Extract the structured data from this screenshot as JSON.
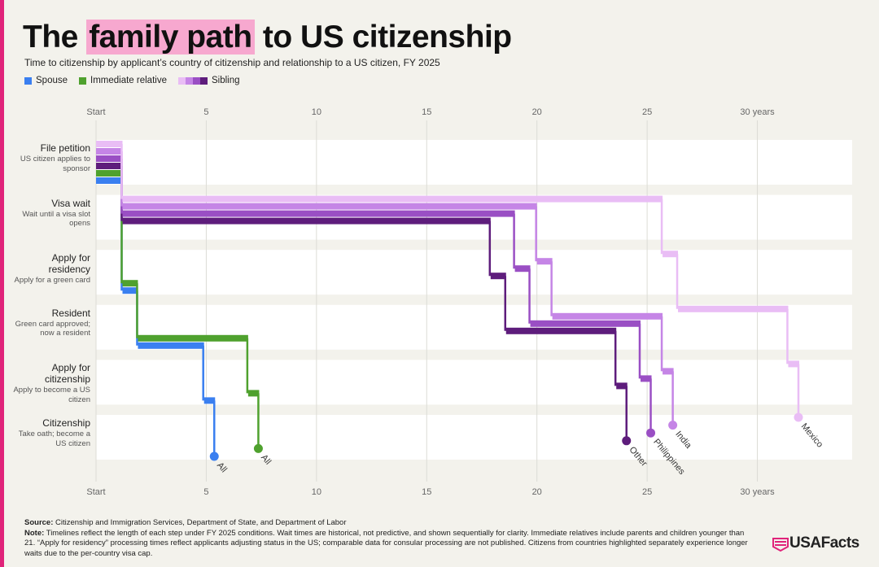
{
  "chart_data": {
    "type": "step-timeline",
    "title": {
      "before": "The",
      "highlight": "family path",
      "after": "to US citizenship"
    },
    "subtitle": "Time to citizenship by applicant’s country of citizenship and relationship to a US citizen, FY 2025",
    "legend": [
      {
        "name": "Spouse",
        "colors": [
          "#3a7ff0"
        ]
      },
      {
        "name": "Immediate relative",
        "colors": [
          "#4fa12e"
        ]
      },
      {
        "name": "Sibling",
        "colors": [
          "#e9bdf5",
          "#c585e6",
          "#9a4fc4",
          "#5e1d7c"
        ]
      }
    ],
    "stages": [
      {
        "label": "File petition",
        "description": "US citizen applies to sponsor"
      },
      {
        "label": "Visa wait",
        "description": "Wait until a visa slot opens"
      },
      {
        "label": "Apply for residency",
        "description": "Apply for a green card"
      },
      {
        "label": "Resident",
        "description": "Green card approved; now a resident"
      },
      {
        "label": "Apply for citizenship",
        "description": "Apply to become a US citizen"
      },
      {
        "label": "Citizenship",
        "description": "Take oath; become a US citizen"
      }
    ],
    "series": [
      {
        "label": "All",
        "color": "#3a7ff0",
        "values": [
          1.2,
          0,
          0.7,
          3.0,
          0.5
        ]
      },
      {
        "label": "All",
        "color": "#4fa12e",
        "values": [
          1.2,
          0,
          0.7,
          5.0,
          0.5
        ]
      },
      {
        "label": "Other",
        "color": "#5e1d7c",
        "values": [
          1.2,
          16.7,
          0.7,
          5.0,
          0.5
        ]
      },
      {
        "label": "Philippines",
        "color": "#9a4fc4",
        "values": [
          1.2,
          17.8,
          0.7,
          5.0,
          0.5
        ]
      },
      {
        "label": "India",
        "color": "#c585e6",
        "values": [
          1.2,
          18.8,
          0.7,
          5.0,
          0.5
        ]
      },
      {
        "label": "Mexico",
        "color": "#e9bdf5",
        "values": [
          1.2,
          24.5,
          0.7,
          5.0,
          0.5
        ]
      }
    ],
    "xlim": [
      0,
      34.3
    ],
    "xticks": [
      {
        "value": 0,
        "label": "Start"
      },
      5,
      10,
      15,
      20,
      25,
      {
        "value": 30,
        "label": "30 years"
      }
    ],
    "grid": true,
    "source": {
      "label": "Source:",
      "text": "Citizenship and Immigration Services, Department of State, and Department of Labor"
    },
    "note": {
      "label": "Note:",
      "text": "Timelines reflect the length of each step under FY 2025 conditions. Wait times are historical, not predictive, and shown sequentially for clarity. Immediate relatives include parents and children younger than 21. “Apply for residency” processing times reflect applicants adjusting status in the US; comparable data for consular processing are not published. Citizens from countries highlighted separately experience longer waits due to the per-country visa cap."
    },
    "logo": "USAFacts"
  }
}
